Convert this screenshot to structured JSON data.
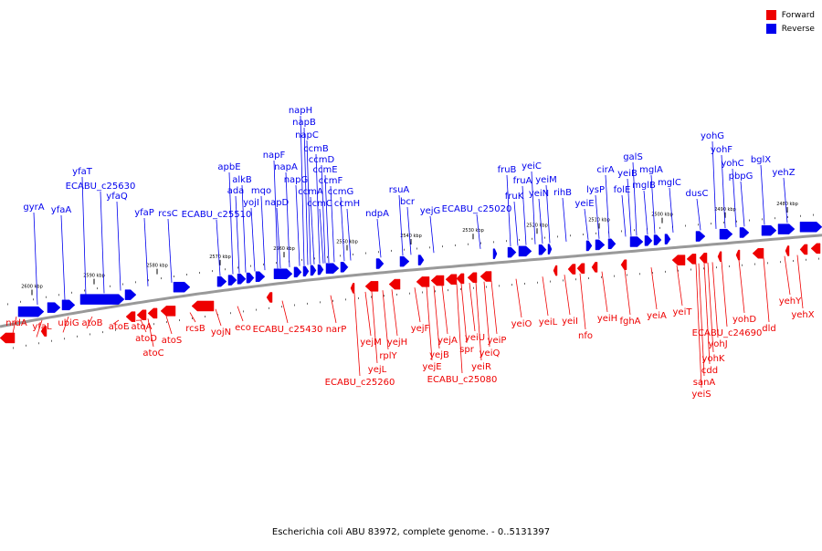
{
  "caption": "Escherichia coli ABU 83972, complete genome. - 0..5131397",
  "legend": [
    {
      "label": "Forward",
      "color": "#ee0000"
    },
    {
      "label": "Reverse",
      "color": "#0000ee"
    }
  ],
  "colors": {
    "forward": "#ee0000",
    "reverse": "#0000ee",
    "backbone": "#999999"
  },
  "ticks": [
    {
      "label": "2600 kbp"
    },
    {
      "label": "2590 kbp"
    },
    {
      "label": "2580 kbp"
    },
    {
      "label": "2570 kbp"
    },
    {
      "label": "2560 kbp"
    },
    {
      "label": "2550 kbp"
    },
    {
      "label": "2540 kbp"
    },
    {
      "label": "2530 kbp"
    },
    {
      "label": "2520 kbp"
    },
    {
      "label": "2510 kbp"
    },
    {
      "label": "2500 kbp"
    },
    {
      "label": "2490 kbp"
    },
    {
      "label": "2480 kbp"
    }
  ],
  "reverse_genes": [
    "gyrA",
    "yfaA",
    "yfaT",
    "ECABU_c25630",
    "yfaQ",
    "yfaP",
    "rcsC",
    "apbE",
    "alkB",
    "ada",
    "yojI",
    "ECABU_c25510",
    "mqo",
    "napF",
    "napD",
    "napA",
    "napH",
    "napB",
    "napC",
    "napG",
    "ccmB",
    "ccmD",
    "ccmA",
    "ccmE",
    "ccmC",
    "ccmF",
    "ccmG",
    "ccmH",
    "ndpA",
    "rsuA",
    "bcr",
    "yejG",
    "ECABU_c25020",
    "fruB",
    "fruK",
    "fruA",
    "yeiC",
    "yeiN",
    "yeiM",
    "rihB",
    "yeiE",
    "lysP",
    "cirA",
    "folE",
    "yeiB",
    "galS",
    "mglB",
    "mglA",
    "mglC",
    "dusC",
    "yohG",
    "yohF",
    "yohC",
    "pbpG",
    "bglX",
    "yehZ"
  ],
  "forward_genes": [
    "nrdA",
    "yfaL",
    "ubiG",
    "atoB",
    "atoE",
    "atoA",
    "atoD",
    "atoC",
    "atoS",
    "rcsB",
    "yojN",
    "eco",
    "ECABU_c25430",
    "narP",
    "ECABU_c25260",
    "yejM",
    "yejL",
    "rplY",
    "yejH",
    "yejF",
    "yejB",
    "yejE",
    "yejA",
    "ECABU_c25080",
    "spr",
    "yeiU",
    "yeiR",
    "yeiQ",
    "yeiP",
    "yeiO",
    "yeiL",
    "yeiI",
    "nfo",
    "yeiH",
    "fghA",
    "yeiA",
    "yeiT",
    "ECABU_c24690",
    "yohJ",
    "yohK",
    "cdd",
    "sanA",
    "yeiS",
    "yohD",
    "dld",
    "yehY",
    "yehX"
  ]
}
